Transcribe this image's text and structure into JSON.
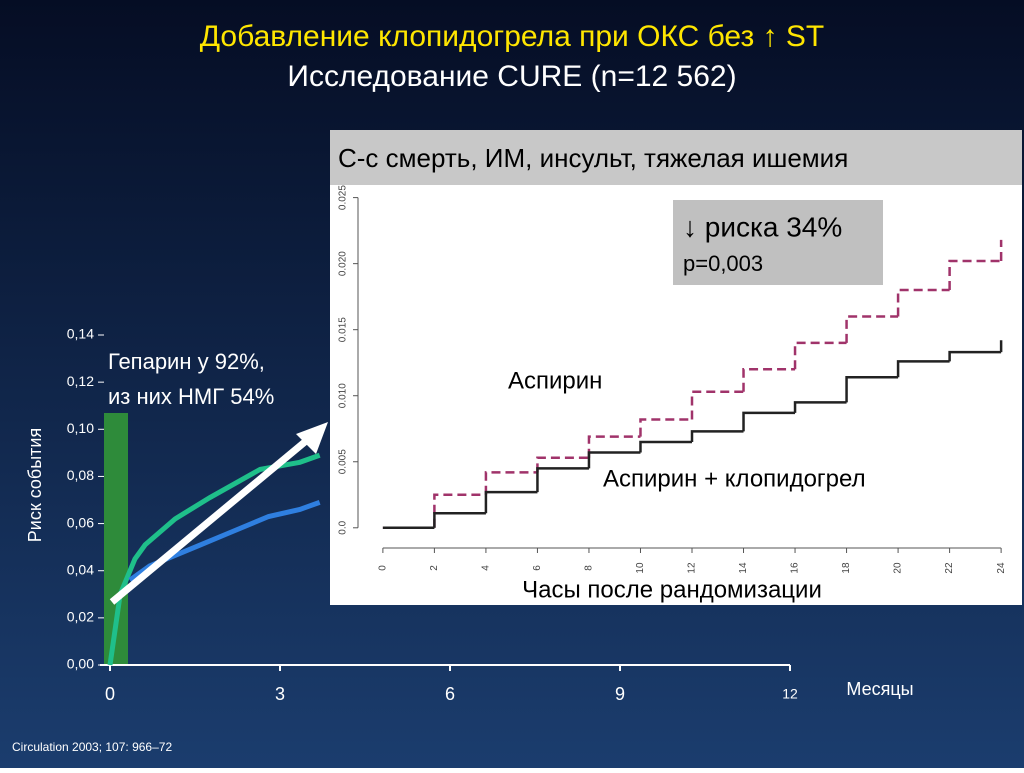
{
  "slide": {
    "title": "Добавление клопидогрела при ОКС без ↑ ST",
    "subtitle": "Исследование CURE (n=12 562)",
    "source": "Circulation 2003; 107: 966–72",
    "note_1": "Гепарин у 92%,",
    "note_2": "из них НМГ 54%"
  },
  "chart_data": [
    {
      "type": "line",
      "ylabel": "Риск события",
      "xlabel": "Месяцы",
      "xlim": [
        0,
        12
      ],
      "xticks": [
        0,
        3,
        6,
        9,
        12
      ],
      "ylim": [
        0,
        0.14
      ],
      "yticks": [
        {
          "value": 0,
          "label": "0,00"
        },
        {
          "value": 0.02,
          "label": "0,02"
        },
        {
          "value": 0.04,
          "label": "0,04"
        },
        {
          "value": 0.06,
          "label": "0,06"
        },
        {
          "value": 0.08,
          "label": "0,08"
        },
        {
          "value": 0.1,
          "label": "0,10"
        },
        {
          "value": 0.12,
          "label": "0,12"
        },
        {
          "value": 0.14,
          "label": "0,14"
        }
      ],
      "series": [
        {
          "color": "#1fbf8a",
          "x": [
            0,
            0.18,
            0.44,
            0.62,
            1.15,
            1.76,
            2.65,
            3.35,
            3.7
          ],
          "values": [
            0,
            0.03,
            0.045,
            0.051,
            0.062,
            0.071,
            0.083,
            0.086,
            0.089
          ]
        },
        {
          "color": "#2f7fe0",
          "x": [
            0.35,
            0.7,
            1.6,
            2.1,
            2.8,
            3.35,
            3.7
          ],
          "values": [
            0.036,
            0.042,
            0.051,
            0.056,
            0.063,
            0.066,
            0.069
          ]
        }
      ]
    },
    {
      "type": "step",
      "title": "С-с смерть, ИМ, инсульт, тяжелая ишемия",
      "xlabel": "Часы после рандомизации",
      "annotation_1": "↓ риска 34%",
      "annotation_2": "p=0,003",
      "xlim": [
        -0.5,
        24.5
      ],
      "xticks": [
        0,
        2,
        4,
        6,
        8,
        10,
        12,
        14,
        16,
        18,
        20,
        22,
        24
      ],
      "ylim": [
        -0.001,
        0.0255
      ],
      "yticks": [
        {
          "value": 0,
          "label": "0.0"
        },
        0.005,
        {
          "value": 0.01,
          "label": "0.010"
        },
        0.015,
        {
          "value": 0.02,
          "label": "0.020"
        },
        0.025
      ],
      "x": [
        0,
        2,
        4,
        6,
        8,
        10,
        12,
        14,
        16,
        18,
        20,
        22,
        24
      ],
      "series": [
        {
          "name": "Аспирин",
          "color": "#a0336a",
          "dashed": true,
          "values": [
            0,
            0.0025,
            0.0042,
            0.0053,
            0.0069,
            0.0082,
            0.0103,
            0.012,
            0.014,
            0.016,
            0.018,
            0.0202,
            0.0218
          ]
        },
        {
          "name": "Аспирин + клопидогрел",
          "color": "#222222",
          "dashed": false,
          "values": [
            0,
            0.0011,
            0.0027,
            0.0045,
            0.0057,
            0.0065,
            0.0073,
            0.0087,
            0.0095,
            0.0114,
            0.0126,
            0.0133,
            0.0142
          ]
        }
      ]
    }
  ]
}
